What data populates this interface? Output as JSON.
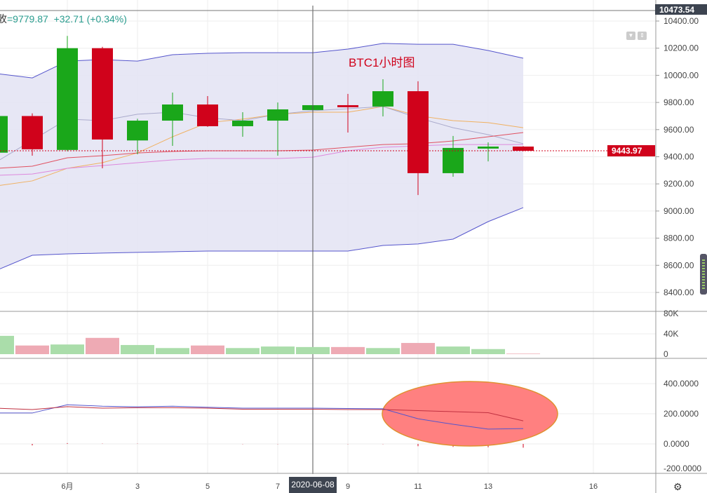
{
  "header": {
    "label": "收",
    "close": "=9779.87",
    "change": "+32.71 (+0.34%)"
  },
  "annotation": "BTC1小时图",
  "crosshair_date": "2020-06-08",
  "last_price_label": "9443.97",
  "top_price_label": "10473.54",
  "colors": {
    "up": "#1aa71a",
    "down": "#d0021b",
    "band_fill": "#e4e4f4",
    "band_line": "#5555cc",
    "ellipse": "#ff8080"
  },
  "icons": [
    "arrow-down-icon",
    "arrow-updown-icon",
    "gear-icon"
  ],
  "chart_data": {
    "type": "candlestick",
    "dates": [
      "05-30",
      "05-31",
      "06-01",
      "06-02",
      "06-03",
      "06-04",
      "06-05",
      "06-06",
      "06-07",
      "06-08",
      "06-09",
      "06-10",
      "06-11",
      "06-12",
      "06-13",
      "06-14"
    ],
    "ohlc": [
      [
        9430,
        9700,
        9400,
        9700
      ],
      [
        9700,
        9720,
        9408,
        9455
      ],
      [
        9450,
        10290,
        9440,
        10200
      ],
      [
        10200,
        10210,
        9315,
        9527
      ],
      [
        9520,
        9680,
        9418,
        9666
      ],
      [
        9666,
        9873,
        9480,
        9785
      ],
      [
        9785,
        9847,
        9620,
        9625
      ],
      [
        9625,
        9728,
        9547,
        9666
      ],
      [
        9666,
        9800,
        9408,
        9749
      ],
      [
        9744,
        9790,
        9650,
        9780
      ],
      [
        9780,
        9863,
        9578,
        9765
      ],
      [
        9770,
        9971,
        9697,
        9883
      ],
      [
        9883,
        9956,
        9118,
        9279
      ],
      [
        9279,
        9553,
        9253,
        9465
      ],
      [
        9460,
        9506,
        9366,
        9475
      ],
      [
        9475,
        9478,
        9440,
        9444
      ]
    ],
    "bollinger_upper": [
      10012,
      9981,
      10105,
      10116,
      10105,
      10152,
      10162,
      10167,
      10167,
      10167,
      10193,
      10235,
      10229,
      10229,
      10183,
      10126
    ],
    "bollinger_lower": [
      8565,
      8674,
      8684,
      8690,
      8695,
      8700,
      8705,
      8705,
      8705,
      8705,
      8705,
      8746,
      8757,
      8793,
      8922,
      9025
    ],
    "ma_lines": [
      {
        "color": "#f0b060",
        "values": [
          9186,
          9222,
          9315,
          9356,
          9428,
          9547,
          9651,
          9677,
          9713,
          9728,
          9728,
          9770,
          9702,
          9666,
          9651,
          9614
        ]
      },
      {
        "color": "#aaaacc",
        "values": [
          9366,
          9521,
          9677,
          9666,
          9713,
          9728,
          9687,
          9666,
          9713,
          9739,
          9754,
          9770,
          9687,
          9614,
          9563,
          9496
        ]
      },
      {
        "color": "#e05060",
        "values": [
          9315,
          9330,
          9392,
          9408,
          9428,
          9439,
          9444,
          9444,
          9444,
          9449,
          9470,
          9490,
          9496,
          9516,
          9547,
          9578
        ]
      },
      {
        "color": "#dd88dd",
        "values": [
          9263,
          9273,
          9315,
          9335,
          9356,
          9377,
          9387,
          9387,
          9387,
          9397,
          9444,
          9470,
          9480,
          9490,
          9490,
          9490
        ]
      }
    ],
    "price_axis": {
      "ticks": [
        "10400.00",
        "10200.00",
        "10000.00",
        "9800.00",
        "9600.00",
        "9400.00",
        "9200.00",
        "9000.00",
        "8800.00",
        "8600.00",
        "8400.00"
      ],
      "range": [
        8330,
        10550
      ]
    },
    "volume": {
      "values": [
        36000,
        17000,
        19000,
        32000,
        18000,
        12000,
        17000,
        12000,
        15000,
        14000,
        14000,
        12000,
        22000,
        15000,
        10000,
        1000
      ],
      "ticks": [
        "80K",
        "40K",
        "0"
      ]
    },
    "indicator": {
      "line1": [
        205,
        205,
        260,
        250,
        246,
        250,
        243,
        237,
        237,
        237,
        235,
        233,
        167,
        130,
        98,
        102
      ],
      "line2": [
        237,
        228,
        247,
        237,
        240,
        240,
        237,
        230,
        230,
        230,
        228,
        228,
        221,
        214,
        207,
        153
      ],
      "hist": [
        0,
        -10,
        5,
        2,
        2,
        0,
        0,
        -2,
        -2,
        0,
        -2,
        -2,
        -15,
        -20,
        -22,
        -25
      ],
      "ticks": [
        "400.0000",
        "200.0000",
        "0.0000",
        "-200.0000"
      ]
    },
    "x_ticks": [
      {
        "label": "6月",
        "date": "06-01"
      },
      {
        "label": "3",
        "date": "06-03"
      },
      {
        "label": "5",
        "date": "06-05"
      },
      {
        "label": "7",
        "date": "06-07"
      },
      {
        "label": "9",
        "date": "06-09"
      },
      {
        "label": "11",
        "date": "06-11"
      },
      {
        "label": "13",
        "date": "06-13"
      },
      {
        "label": "16",
        "date": "06-16"
      }
    ]
  }
}
